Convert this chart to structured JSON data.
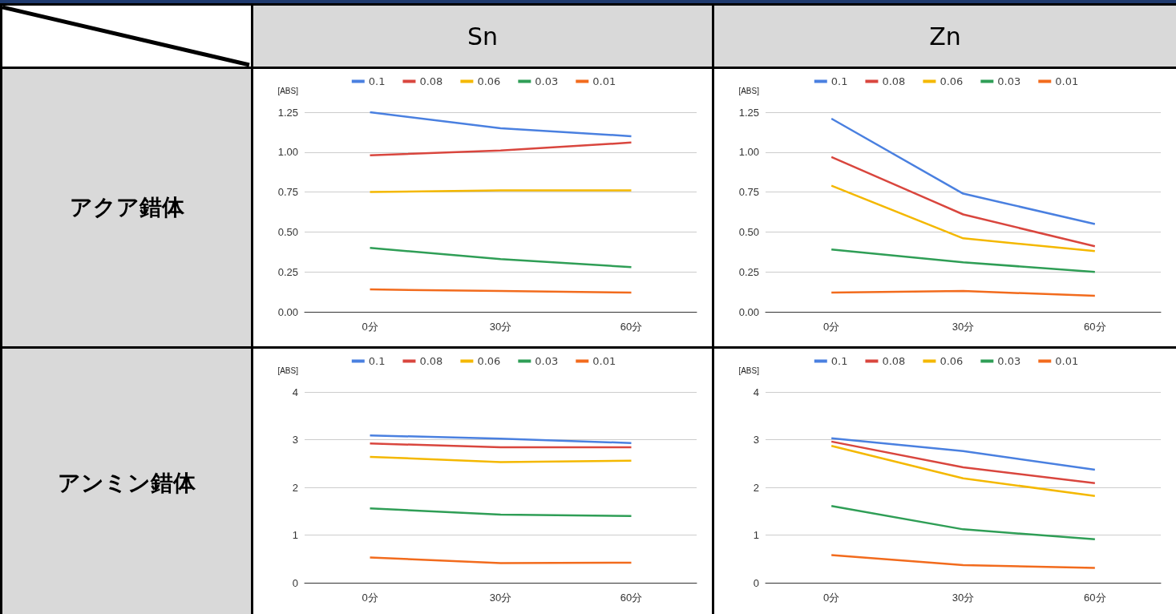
{
  "chart_data": [
    {
      "type": "line",
      "title": "Sn",
      "ylabel": "[ABS]",
      "annotations": [
        "アクア錯体"
      ],
      "categories": [
        "0分",
        "30分",
        "60分"
      ],
      "ylim": [
        0,
        1.25
      ],
      "yticks": [
        {
          "value": 0,
          "label": "0.00"
        },
        {
          "value": 0.25,
          "label": "0.25"
        },
        {
          "value": 0.5,
          "label": "0.50"
        },
        {
          "value": 0.75,
          "label": "0.75"
        },
        {
          "value": 1,
          "label": "1.00"
        },
        {
          "value": 1.25,
          "label": "1.25"
        }
      ],
      "grid": "y",
      "legend": "top",
      "marker": "none",
      "line_style": "solid",
      "series": [
        {
          "name": "0.1",
          "color": "#4a80e0",
          "values": [
            1.25,
            1.15,
            1.1
          ]
        },
        {
          "name": "0.08",
          "color": "#d9463e",
          "values": [
            0.98,
            1.01,
            1.06
          ]
        },
        {
          "name": "0.06",
          "color": "#f4b800",
          "values": [
            0.75,
            0.76,
            0.76
          ]
        },
        {
          "name": "0.03",
          "color": "#2f9e56",
          "values": [
            0.4,
            0.33,
            0.28
          ]
        },
        {
          "name": "0.01",
          "color": "#f26b1d",
          "values": [
            0.14,
            0.13,
            0.12
          ]
        }
      ]
    },
    {
      "type": "line",
      "title": "Zn",
      "ylabel": "[ABS]",
      "categories": [
        "0分",
        "30分",
        "60分"
      ],
      "ylim": [
        0,
        1.25
      ],
      "yticks": [
        {
          "value": 0,
          "label": "0.00"
        },
        {
          "value": 0.25,
          "label": "0.25"
        },
        {
          "value": 0.5,
          "label": "0.50"
        },
        {
          "value": 0.75,
          "label": "0.75"
        },
        {
          "value": 1,
          "label": "1.00"
        },
        {
          "value": 1.25,
          "label": "1.25"
        }
      ],
      "grid": "y",
      "legend": "top",
      "marker": "none",
      "line_style": "solid",
      "series": [
        {
          "name": "0.1",
          "color": "#4a80e0",
          "values": [
            1.21,
            0.74,
            0.55
          ]
        },
        {
          "name": "0.08",
          "color": "#d9463e",
          "values": [
            0.97,
            0.61,
            0.41
          ]
        },
        {
          "name": "0.06",
          "color": "#f4b800",
          "values": [
            0.79,
            0.46,
            0.38
          ]
        },
        {
          "name": "0.03",
          "color": "#2f9e56",
          "values": [
            0.39,
            0.31,
            0.25
          ]
        },
        {
          "name": "0.01",
          "color": "#f26b1d",
          "values": [
            0.12,
            0.13,
            0.1
          ]
        }
      ]
    },
    {
      "type": "line",
      "ylabel": "[ABS]",
      "annotations": [
        "アンミン錯体"
      ],
      "categories": [
        "0分",
        "30分",
        "60分"
      ],
      "ylim": [
        0,
        4
      ],
      "yticks": [
        0,
        1,
        2,
        3,
        4
      ],
      "grid": "y",
      "legend": "top",
      "marker": "none",
      "line_style": "solid",
      "series": [
        {
          "name": "0.1",
          "color": "#4a80e0",
          "values": [
            3.09,
            3.02,
            2.93
          ]
        },
        {
          "name": "0.08",
          "color": "#d9463e",
          "values": [
            2.92,
            2.84,
            2.84
          ]
        },
        {
          "name": "0.06",
          "color": "#f4b800",
          "values": [
            2.64,
            2.53,
            2.56
          ]
        },
        {
          "name": "0.03",
          "color": "#2f9e56",
          "values": [
            1.56,
            1.43,
            1.4
          ]
        },
        {
          "name": "0.01",
          "color": "#f26b1d",
          "values": [
            0.53,
            0.41,
            0.42
          ]
        }
      ]
    },
    {
      "type": "line",
      "ylabel": "[ABS]",
      "categories": [
        "0分",
        "30分",
        "60分"
      ],
      "ylim": [
        0,
        4
      ],
      "yticks": [
        0,
        1,
        2,
        3,
        4
      ],
      "grid": "y",
      "legend": "top",
      "marker": "none",
      "line_style": "solid",
      "series": [
        {
          "name": "0.1",
          "color": "#4a80e0",
          "values": [
            3.03,
            2.76,
            2.37
          ]
        },
        {
          "name": "0.08",
          "color": "#d9463e",
          "values": [
            2.96,
            2.42,
            2.09
          ]
        },
        {
          "name": "0.06",
          "color": "#f4b800",
          "values": [
            2.87,
            2.19,
            1.82
          ]
        },
        {
          "name": "0.03",
          "color": "#2f9e56",
          "values": [
            1.61,
            1.12,
            0.91
          ]
        },
        {
          "name": "0.01",
          "color": "#f26b1d",
          "values": [
            0.58,
            0.37,
            0.31
          ]
        }
      ]
    }
  ]
}
